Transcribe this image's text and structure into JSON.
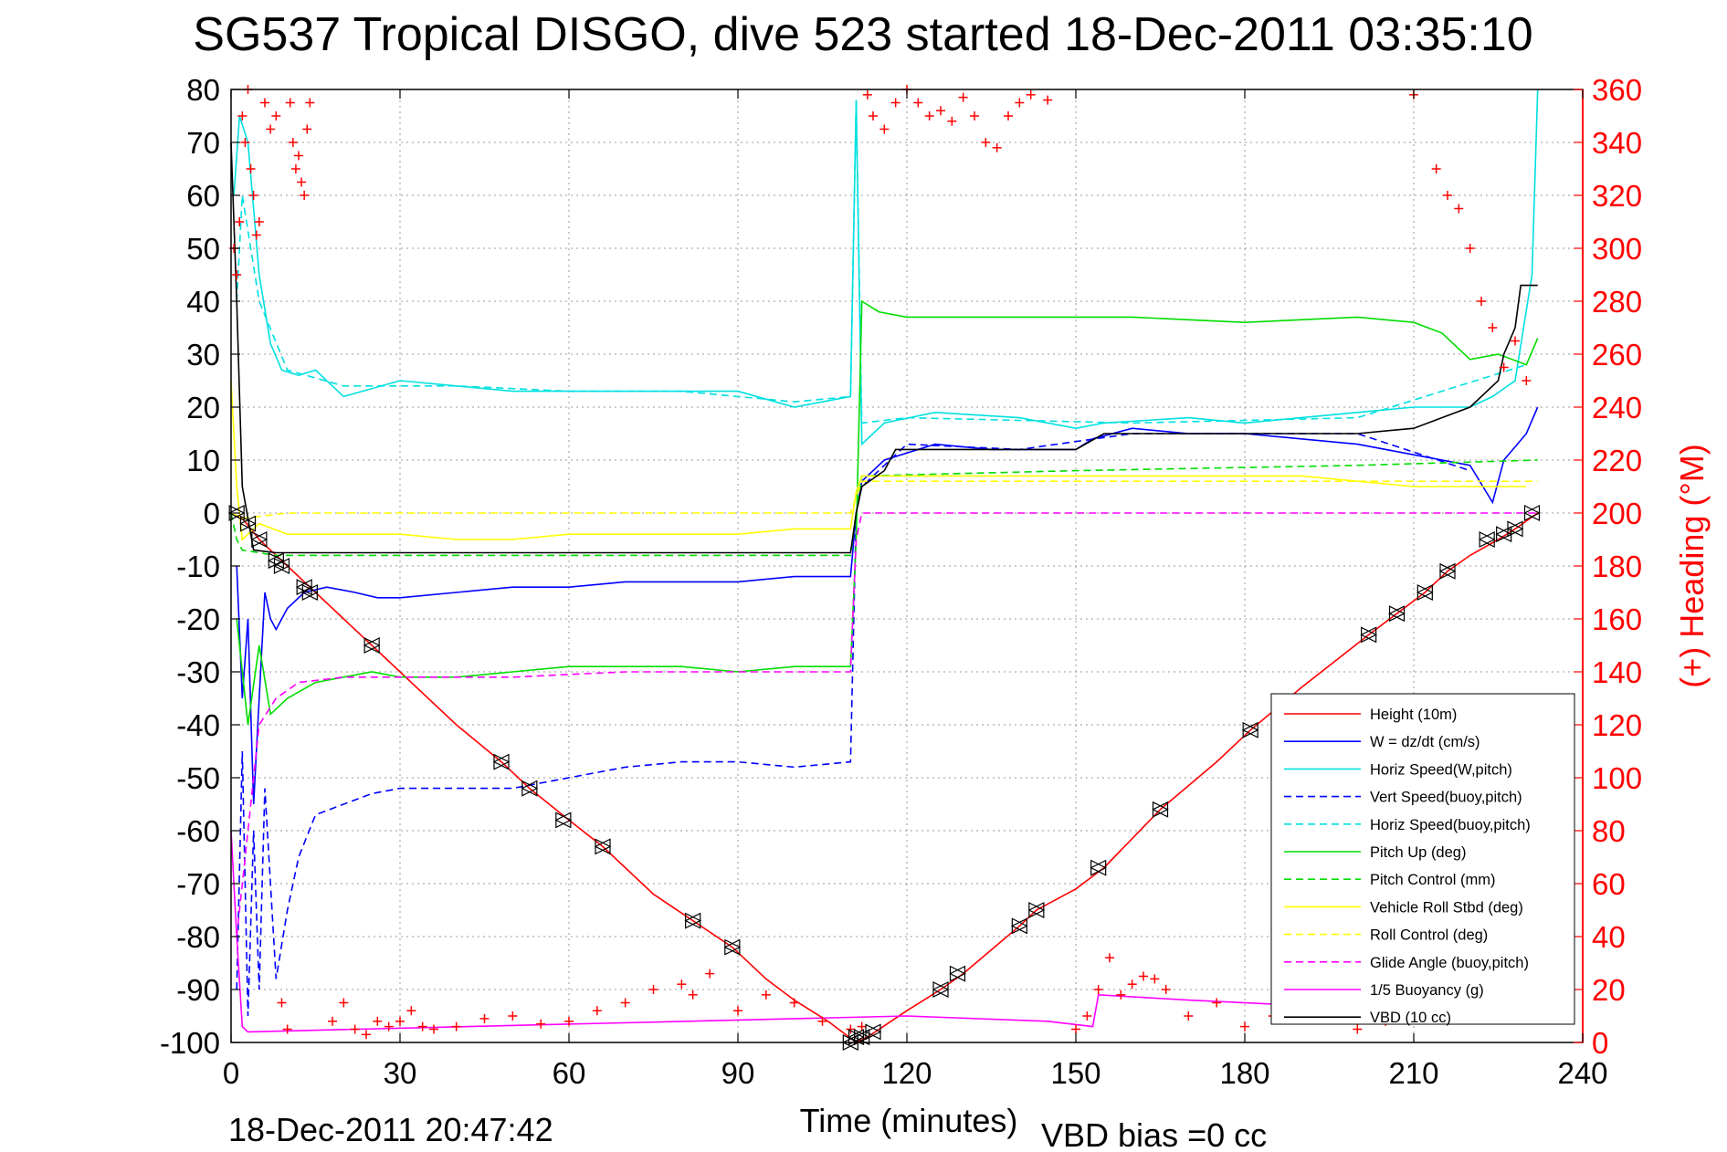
{
  "chart_data": {
    "type": "line",
    "title": "SG537 Tropical DISGO, dive 523 started 18-Dec-2011 03:35:10",
    "xlabel": "Time (minutes)",
    "ylabel_right": "(+) Heading (°M)",
    "footer_left": "18-Dec-2011 20:47:42",
    "footer_right": "VBD bias =0 cc",
    "xlim": [
      0,
      240
    ],
    "ylim": [
      -100,
      80
    ],
    "ylim_right": [
      0,
      360
    ],
    "x_ticks": [
      0,
      30,
      60,
      90,
      120,
      150,
      180,
      210,
      240
    ],
    "y_ticks": [
      80,
      70,
      60,
      50,
      40,
      30,
      20,
      10,
      0,
      -10,
      -20,
      -30,
      -40,
      -50,
      -60,
      -70,
      -80,
      -90,
      -100
    ],
    "y_right_ticks": [
      360,
      340,
      320,
      300,
      280,
      260,
      240,
      220,
      200,
      180,
      160,
      140,
      120,
      100,
      80,
      60,
      40,
      20,
      0
    ],
    "grid": true,
    "legend_position": "bottom-right",
    "series": [
      {
        "name": "Height (10m)",
        "color": "#ff0000",
        "style": "solid",
        "x": [
          0,
          2,
          5,
          8,
          10,
          14,
          20,
          25,
          30,
          40,
          48,
          53,
          60,
          66,
          75,
          82,
          89,
          95,
          100,
          106,
          111,
          113,
          120,
          126,
          130,
          140,
          143,
          150,
          155,
          165,
          175,
          181,
          190,
          202,
          207,
          212,
          216,
          220,
          225,
          228,
          232
        ],
        "y": [
          0,
          -1,
          -5,
          -8,
          -10,
          -14,
          -20,
          -25,
          -30,
          -40,
          -47,
          -52,
          -58,
          -63,
          -72,
          -77,
          -82,
          -88,
          -92,
          -96,
          -100,
          -99,
          -94,
          -90,
          -87,
          -78,
          -75,
          -71,
          -67,
          -56,
          -47,
          -41,
          -33,
          -23,
          -19,
          -15,
          -11,
          -8,
          -5,
          -3,
          0
        ]
      },
      {
        "name": "W = dz/dt (cm/s)",
        "color": "#0000ff",
        "style": "solid",
        "x": [
          1,
          2,
          3,
          4,
          5,
          6,
          7,
          8,
          10,
          13,
          17,
          22,
          26,
          30,
          40,
          50,
          60,
          70,
          80,
          90,
          100,
          110,
          111,
          112,
          116,
          125,
          135,
          150,
          153,
          160,
          170,
          180,
          190,
          200,
          210,
          220,
          224,
          226,
          230,
          232
        ],
        "y": [
          -10,
          -35,
          -20,
          -55,
          -35,
          -15,
          -20,
          -22,
          -18,
          -15,
          -14,
          -15,
          -16,
          -16,
          -15,
          -14,
          -14,
          -13,
          -13,
          -13,
          -12,
          -12,
          0,
          6,
          10,
          13,
          12,
          12,
          14,
          16,
          15,
          15,
          14,
          13,
          11,
          9,
          2,
          10,
          15,
          20
        ]
      },
      {
        "name": "Horiz Speed(W,pitch)",
        "color": "#00e0e0",
        "style": "solid",
        "x": [
          0.5,
          1.5,
          3,
          5,
          7,
          9,
          12,
          15,
          20,
          30,
          40,
          50,
          60,
          70,
          80,
          90,
          100,
          110,
          111,
          112,
          116,
          125,
          140,
          150,
          155,
          170,
          180,
          190,
          200,
          210,
          220,
          224,
          228,
          231,
          232
        ],
        "y": [
          60,
          75,
          70,
          45,
          32,
          27,
          26,
          27,
          22,
          25,
          24,
          23,
          23,
          23,
          23,
          23,
          20,
          22,
          78,
          13,
          17,
          19,
          18,
          16,
          17,
          18,
          17,
          18,
          19,
          20,
          20,
          22,
          25,
          45,
          80
        ]
      },
      {
        "name": "Vert Speed(buoy,pitch)",
        "color": "#0000ff",
        "style": "dashed",
        "x": [
          1,
          2,
          3,
          4,
          5,
          6,
          8,
          10,
          12,
          15,
          20,
          25,
          30,
          40,
          50,
          60,
          70,
          80,
          90,
          100,
          110,
          111,
          112,
          120,
          140,
          160,
          180,
          200,
          220
        ],
        "y": [
          -90,
          -45,
          -95,
          -60,
          -90,
          -52,
          -88,
          -75,
          -65,
          -57,
          -55,
          -53,
          -52,
          -52,
          -52,
          -50,
          -48,
          -47,
          -47,
          -48,
          -47,
          0,
          5,
          13,
          12,
          15,
          15,
          15,
          8
        ]
      },
      {
        "name": "Horiz Speed(buoy,pitch)",
        "color": "#00e0e0",
        "style": "dashed",
        "x": [
          1,
          2,
          5,
          10,
          20,
          40,
          60,
          80,
          100,
          110,
          111,
          112,
          120,
          160,
          200,
          230
        ],
        "y": [
          40,
          60,
          40,
          27,
          24,
          24,
          23,
          23,
          21,
          22,
          78,
          17,
          18,
          17,
          18,
          28
        ]
      },
      {
        "name": "Pitch Up (deg)",
        "color": "#00dd00",
        "style": "solid",
        "x": [
          1,
          3,
          5,
          7,
          10,
          15,
          20,
          25,
          30,
          40,
          50,
          60,
          70,
          80,
          90,
          100,
          110,
          111,
          112,
          115,
          120,
          140,
          160,
          180,
          200,
          210,
          215,
          220,
          225,
          230,
          232
        ],
        "y": [
          -20,
          -40,
          -25,
          -38,
          -35,
          -32,
          -31,
          -30,
          -31,
          -31,
          -30,
          -29,
          -29,
          -29,
          -30,
          -29,
          -29,
          -5,
          40,
          38,
          37,
          37,
          37,
          36,
          37,
          36,
          34,
          29,
          30,
          28,
          33
        ]
      },
      {
        "name": "Pitch Control (mm)",
        "color": "#00dd00",
        "style": "dashed",
        "x": [
          0,
          1,
          2,
          8,
          110,
          111,
          112,
          150,
          200,
          232
        ],
        "y": [
          0,
          -5,
          -7,
          -8,
          -8,
          0,
          7,
          8,
          9,
          10
        ]
      },
      {
        "name": "Vehicle Roll Stbd (deg)",
        "color": "#ffff00",
        "style": "solid",
        "x": [
          0,
          1,
          2,
          5,
          10,
          20,
          30,
          40,
          50,
          60,
          70,
          80,
          90,
          100,
          110,
          111,
          112,
          130,
          150,
          170,
          190,
          210,
          230
        ],
        "y": [
          25,
          5,
          -5,
          -2,
          -4,
          -4,
          -4,
          -5,
          -5,
          -4,
          -4,
          -4,
          -4,
          -3,
          -3,
          4,
          7,
          7,
          7,
          7,
          7,
          5,
          5
        ]
      },
      {
        "name": "Roll Control (deg)",
        "color": "#ffff00",
        "style": "dashed",
        "x": [
          0,
          2,
          10,
          60,
          110,
          112,
          150,
          200,
          232
        ],
        "y": [
          0,
          -1,
          0,
          0,
          0,
          6,
          6,
          6,
          6
        ]
      },
      {
        "name": "Glide Angle (buoy,pitch)",
        "color": "#ff00ff",
        "style": "dashed",
        "x": [
          1,
          3,
          5,
          8,
          12,
          20,
          30,
          50,
          70,
          90,
          110,
          111,
          112,
          232
        ],
        "y": [
          -80,
          -60,
          -40,
          -35,
          -32,
          -31,
          -31,
          -31,
          -30,
          -30,
          -30,
          -5,
          0,
          0
        ]
      },
      {
        "name": "1/5 Buoyancy (g)",
        "color": "#ff00ff",
        "style": "solid",
        "x": [
          0,
          1,
          2,
          3,
          120,
          145,
          153,
          154,
          170,
          190,
          200,
          215
        ],
        "y": [
          -60,
          -80,
          -97,
          -98,
          -95,
          -96,
          -97,
          -91,
          -92,
          -93,
          -94,
          -96
        ]
      },
      {
        "name": "VBD (10 cc)",
        "color": "#000000",
        "style": "solid",
        "x": [
          0,
          1,
          2,
          4,
          8,
          110,
          111,
          112,
          116,
          118,
          150,
          155,
          170,
          200,
          210,
          215,
          220,
          225,
          226,
          228,
          229,
          232
        ],
        "y": [
          70,
          40,
          5,
          -7,
          -7.5,
          -7.5,
          0,
          5,
          8,
          12,
          12,
          15,
          15,
          15,
          16,
          18,
          20,
          25,
          30,
          35,
          43,
          43
        ]
      }
    ],
    "heading_series": {
      "name": "(+) Heading",
      "color": "#ff0000",
      "marker": "+",
      "axis": "right",
      "x": [
        0.5,
        1,
        1.5,
        2,
        2.5,
        3,
        3.5,
        4,
        4.5,
        5,
        6,
        7,
        8,
        9,
        10,
        10.5,
        11,
        11.5,
        12,
        12.5,
        13,
        13.5,
        14,
        18,
        20,
        22,
        24,
        26,
        28,
        30,
        32,
        34,
        36,
        40,
        45,
        50,
        55,
        60,
        65,
        70,
        75,
        80,
        82,
        85,
        90,
        95,
        100,
        105,
        110,
        112,
        113,
        114,
        116,
        118,
        120,
        122,
        124,
        126,
        128,
        130,
        132,
        134,
        136,
        138,
        140,
        142,
        145,
        150,
        152,
        154,
        156,
        158,
        160,
        162,
        164,
        166,
        170,
        175,
        180,
        185,
        190,
        195,
        200,
        205,
        210,
        214,
        216,
        218,
        220,
        222,
        224,
        226,
        228,
        230
      ],
      "y": [
        300,
        290,
        310,
        350,
        340,
        360,
        330,
        320,
        305,
        310,
        355,
        345,
        350,
        15,
        5,
        355,
        340,
        330,
        335,
        325,
        320,
        345,
        355,
        8,
        15,
        5,
        3,
        8,
        6,
        8,
        12,
        6,
        5,
        6,
        9,
        10,
        7,
        8,
        12,
        15,
        20,
        22,
        18,
        26,
        12,
        18,
        15,
        8,
        5,
        6,
        358,
        350,
        345,
        355,
        360,
        355,
        350,
        352,
        348,
        357,
        350,
        340,
        338,
        350,
        355,
        358,
        356,
        5,
        10,
        20,
        32,
        18,
        22,
        25,
        24,
        20,
        10,
        15,
        6,
        10,
        15,
        12,
        5,
        8,
        358,
        330,
        320,
        315,
        300,
        280,
        270,
        255,
        265,
        250
      ]
    },
    "markers": {
      "description": "triangle markers along height track",
      "x": [
        1,
        3,
        5,
        8,
        9,
        13,
        14,
        25,
        48,
        53,
        59,
        66,
        82,
        89,
        110,
        111,
        112,
        114,
        126,
        129,
        140,
        143,
        154,
        165,
        181,
        202,
        207,
        212,
        216,
        223,
        226,
        228,
        231
      ],
      "y": [
        0,
        -2,
        -5,
        -9,
        -10,
        -14,
        -15,
        -25,
        -47,
        -52,
        -58,
        -63,
        -77,
        -82,
        -100,
        -99,
        -99,
        -98,
        -90,
        -87,
        -78,
        -75,
        -67,
        -56,
        -41,
        -23,
        -19,
        -15,
        -11,
        -5,
        -4,
        -3,
        0
      ]
    }
  }
}
